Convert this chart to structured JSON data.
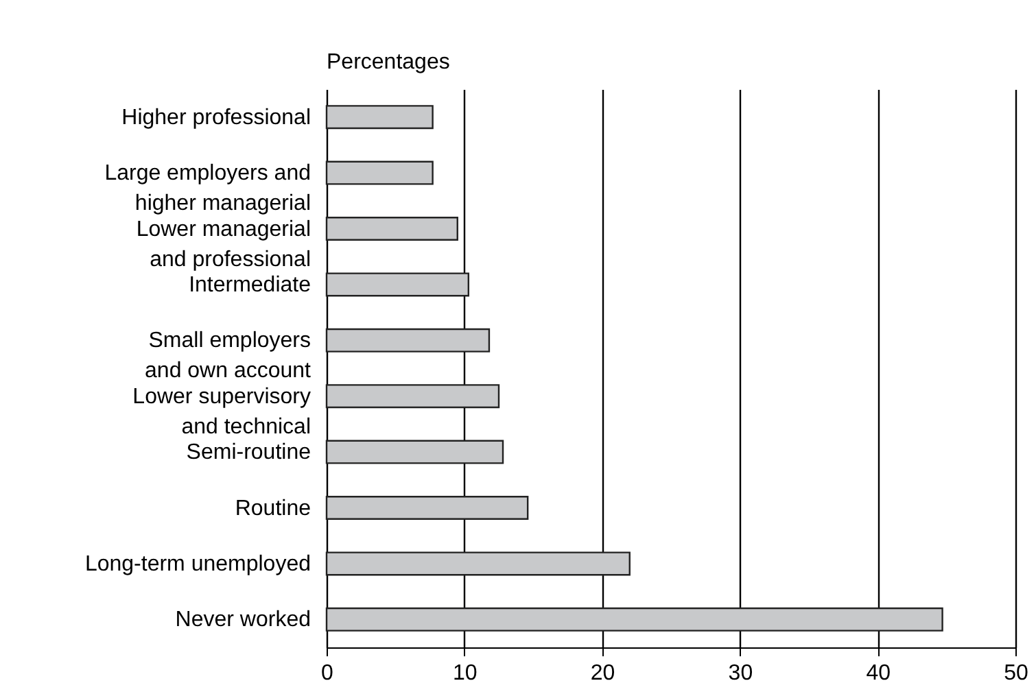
{
  "chart_data": {
    "type": "bar",
    "orientation": "horizontal",
    "xlabel": "Percentages",
    "categories": [
      "Higher professional",
      "Large employers and\nhigher managerial",
      "Lower managerial\nand professional",
      "Intermediate",
      "Small employers\nand own account",
      "Lower supervisory\nand technical",
      "Semi-routine",
      "Routine",
      "Long-term unemployed",
      "Never worked"
    ],
    "values": [
      7.7,
      7.7,
      9.5,
      10.3,
      11.8,
      12.5,
      12.8,
      14.6,
      22.0,
      44.7
    ],
    "color": "#c8c9cb",
    "xlim": [
      0,
      50
    ],
    "xticks": [
      0,
      10,
      20,
      30,
      40,
      50
    ],
    "grid": "x"
  }
}
